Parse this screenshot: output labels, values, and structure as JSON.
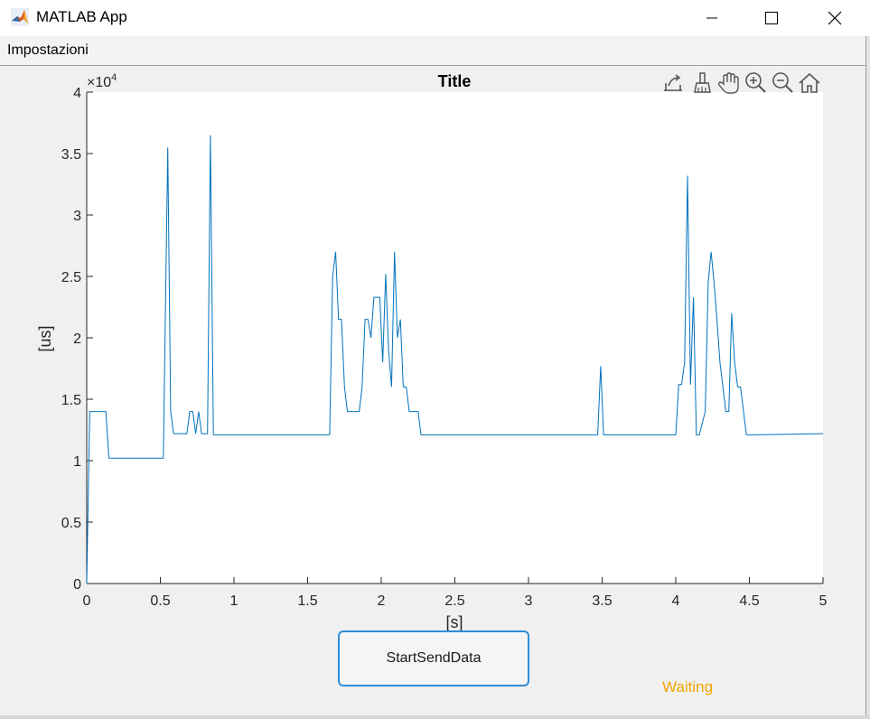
{
  "window": {
    "title": "MATLAB App",
    "controls": [
      "minimize-icon",
      "maximize-icon",
      "close-icon"
    ]
  },
  "menu": {
    "items": [
      "Impostazioni"
    ]
  },
  "axes_toolbar": {
    "icons": [
      "export-icon",
      "brush-icon",
      "pan-hand-icon",
      "zoom-in-icon",
      "zoom-out-icon",
      "home-icon"
    ]
  },
  "controls": {
    "start_button_label": "StartSendData",
    "status_label": "Waiting",
    "status_color": "#f2a400",
    "button_border_color": "#2f8fd8"
  },
  "chart_data": {
    "type": "line",
    "title": "Title",
    "xlabel": "[s]",
    "ylabel": "[us]",
    "y_exponent_label": "×10",
    "y_exponent_power": "4",
    "xlim": [
      0,
      5
    ],
    "ylim": [
      0,
      40000
    ],
    "xticks": [
      0,
      0.5,
      1,
      1.5,
      2,
      2.5,
      3,
      3.5,
      4,
      4.5,
      5
    ],
    "xtick_labels": [
      "0",
      "0.5",
      "1",
      "1.5",
      "2",
      "2.5",
      "3",
      "3.5",
      "4",
      "4.5",
      "5"
    ],
    "yticks": [
      0,
      5000,
      10000,
      15000,
      20000,
      25000,
      30000,
      35000,
      40000
    ],
    "ytick_labels": [
      "0",
      "0.5",
      "1",
      "1.5",
      "2",
      "2.5",
      "3",
      "3.5",
      "4"
    ],
    "grid": false,
    "line_color": "#0072bd",
    "series": [
      {
        "x": [
          0,
          0.02,
          0.13,
          0.15,
          0.52,
          0.55,
          0.57,
          0.59,
          0.68,
          0.7,
          0.72,
          0.74,
          0.76,
          0.78,
          0.82,
          0.84,
          0.86,
          1.0,
          1.5,
          1.65,
          1.67,
          1.69,
          1.71,
          1.73,
          1.75,
          1.77,
          1.85,
          1.87,
          1.89,
          1.91,
          1.93,
          1.95,
          1.97,
          1.99,
          2.01,
          2.03,
          2.05,
          2.07,
          2.09,
          2.11,
          2.13,
          2.15,
          2.17,
          2.19,
          2.21,
          2.25,
          2.27,
          3.0,
          3.47,
          3.49,
          3.51,
          4.0,
          4.02,
          4.04,
          4.06,
          4.08,
          4.1,
          4.12,
          4.14,
          4.16,
          4.2,
          4.22,
          4.24,
          4.26,
          4.28,
          4.3,
          4.32,
          4.34,
          4.36,
          4.38,
          4.4,
          4.42,
          4.44,
          4.46,
          4.48,
          4.5,
          4.52,
          5.0
        ],
        "y": [
          0,
          14000,
          14000,
          10200,
          10200,
          35500,
          14000,
          12200,
          12200,
          14000,
          14000,
          12200,
          14000,
          12200,
          12200,
          36500,
          12100,
          12100,
          12100,
          12100,
          25000,
          27000,
          21500,
          21500,
          16000,
          14000,
          14000,
          16000,
          21500,
          21500,
          20000,
          23300,
          23300,
          23300,
          18000,
          25200,
          19000,
          16000,
          27000,
          20000,
          21500,
          16000,
          16000,
          14000,
          14000,
          14000,
          12100,
          12100,
          12100,
          17700,
          12100,
          12100,
          16200,
          16200,
          18000,
          33200,
          16200,
          23300,
          12100,
          12100,
          14000,
          24500,
          27000,
          24500,
          21500,
          18000,
          16000,
          14000,
          14000,
          22000,
          18000,
          16000,
          16000,
          14000,
          12100,
          12100,
          12100,
          12200
        ]
      }
    ]
  }
}
